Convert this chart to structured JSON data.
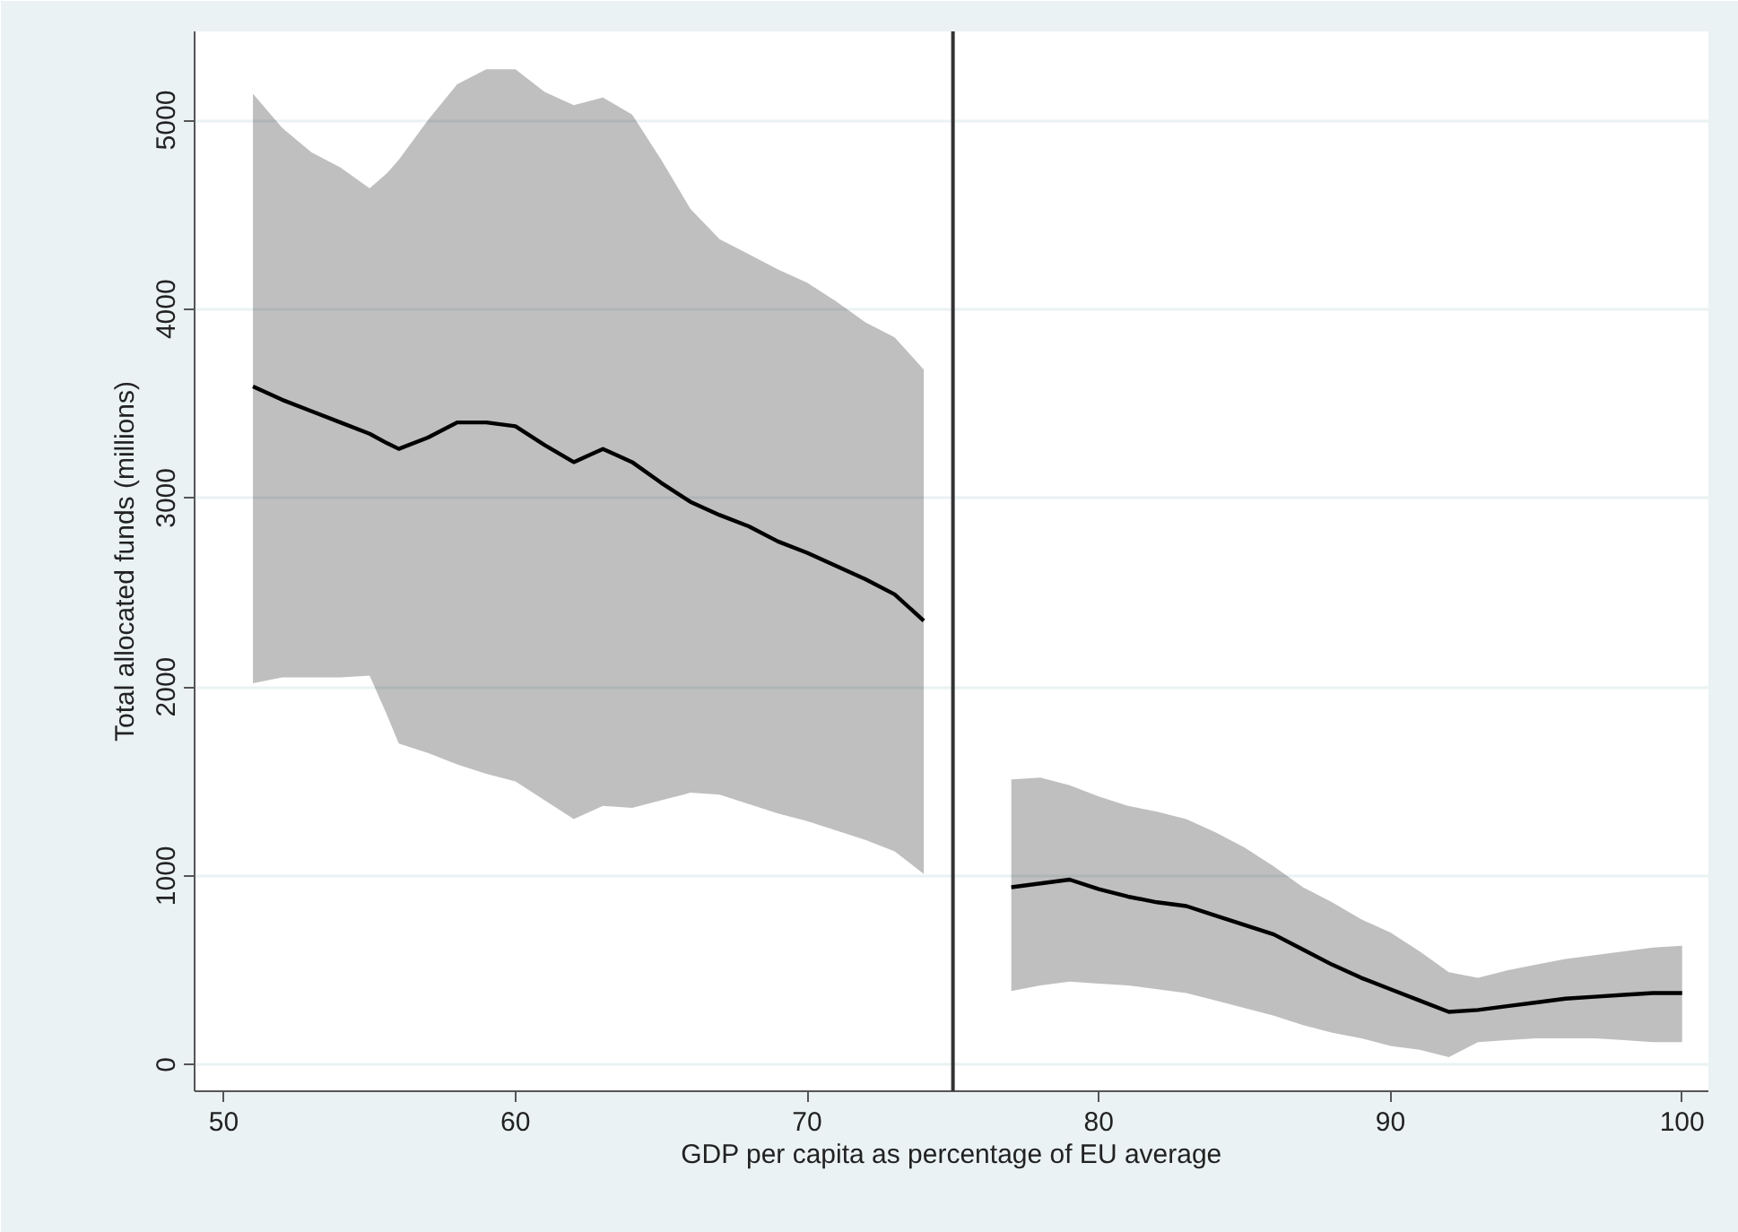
{
  "chart_data": {
    "type": "line",
    "xlabel": "GDP per capita as percentage of EU average",
    "ylabel": "Total allocated funds (millions)",
    "xlim": [
      49,
      100.9
    ],
    "ylim": [
      -140,
      5470
    ],
    "xticks": [
      50,
      60,
      70,
      80,
      90,
      100
    ],
    "yticks": [
      0,
      1000,
      2000,
      3000,
      4000,
      5000
    ],
    "grid": "y",
    "marker": "none",
    "line_style": "solid",
    "series": [
      {
        "color": "#000000",
        "x": [
          51,
          52,
          53,
          54,
          55,
          55.6,
          56,
          57,
          58,
          59,
          60,
          61,
          62,
          63,
          64,
          65,
          66,
          67,
          68,
          69,
          70,
          71,
          72,
          73,
          74
        ],
        "values": [
          3590,
          3520,
          3460,
          3400,
          3340,
          3290,
          3260,
          3320,
          3400,
          3400,
          3380,
          3280,
          3190,
          3260,
          3190,
          3080,
          2980,
          2910,
          2850,
          2770,
          2710,
          2640,
          2570,
          2490,
          2350
        ],
        "upper": [
          5140,
          4960,
          4830,
          4750,
          4640,
          4720,
          4790,
          5000,
          5190,
          5270,
          5270,
          5150,
          5080,
          5120,
          5030,
          4790,
          4530,
          4370,
          4290,
          4210,
          4140,
          4040,
          3930,
          3850,
          3680
        ],
        "lower": [
          2020,
          2050,
          2050,
          2050,
          2060,
          1850,
          1700,
          1650,
          1590,
          1540,
          1500,
          1400,
          1300,
          1370,
          1360,
          1400,
          1440,
          1430,
          1380,
          1330,
          1290,
          1240,
          1190,
          1130,
          1010
        ]
      },
      {
        "color": "#000000",
        "x": [
          77,
          78,
          79,
          80,
          81,
          82,
          83,
          84,
          85,
          86,
          87,
          88,
          89,
          90,
          91,
          92,
          93,
          94,
          95,
          96,
          97,
          98,
          99,
          100
        ],
        "values": [
          940,
          960,
          980,
          930,
          890,
          860,
          840,
          790,
          740,
          690,
          610,
          530,
          460,
          400,
          340,
          280,
          290,
          310,
          330,
          350,
          360,
          370,
          380,
          380
        ],
        "upper": [
          1510,
          1520,
          1480,
          1420,
          1370,
          1340,
          1300,
          1230,
          1150,
          1050,
          940,
          860,
          770,
          700,
          600,
          490,
          460,
          500,
          530,
          560,
          580,
          600,
          620,
          630
        ],
        "lower": [
          390,
          420,
          440,
          430,
          420,
          400,
          380,
          340,
          300,
          260,
          210,
          170,
          140,
          100,
          80,
          40,
          120,
          130,
          140,
          140,
          140,
          130,
          120,
          120
        ]
      }
    ],
    "ref_lines": [
      {
        "axis": "x",
        "value": 75,
        "color": "#333333",
        "line_style": "solid"
      }
    ]
  }
}
